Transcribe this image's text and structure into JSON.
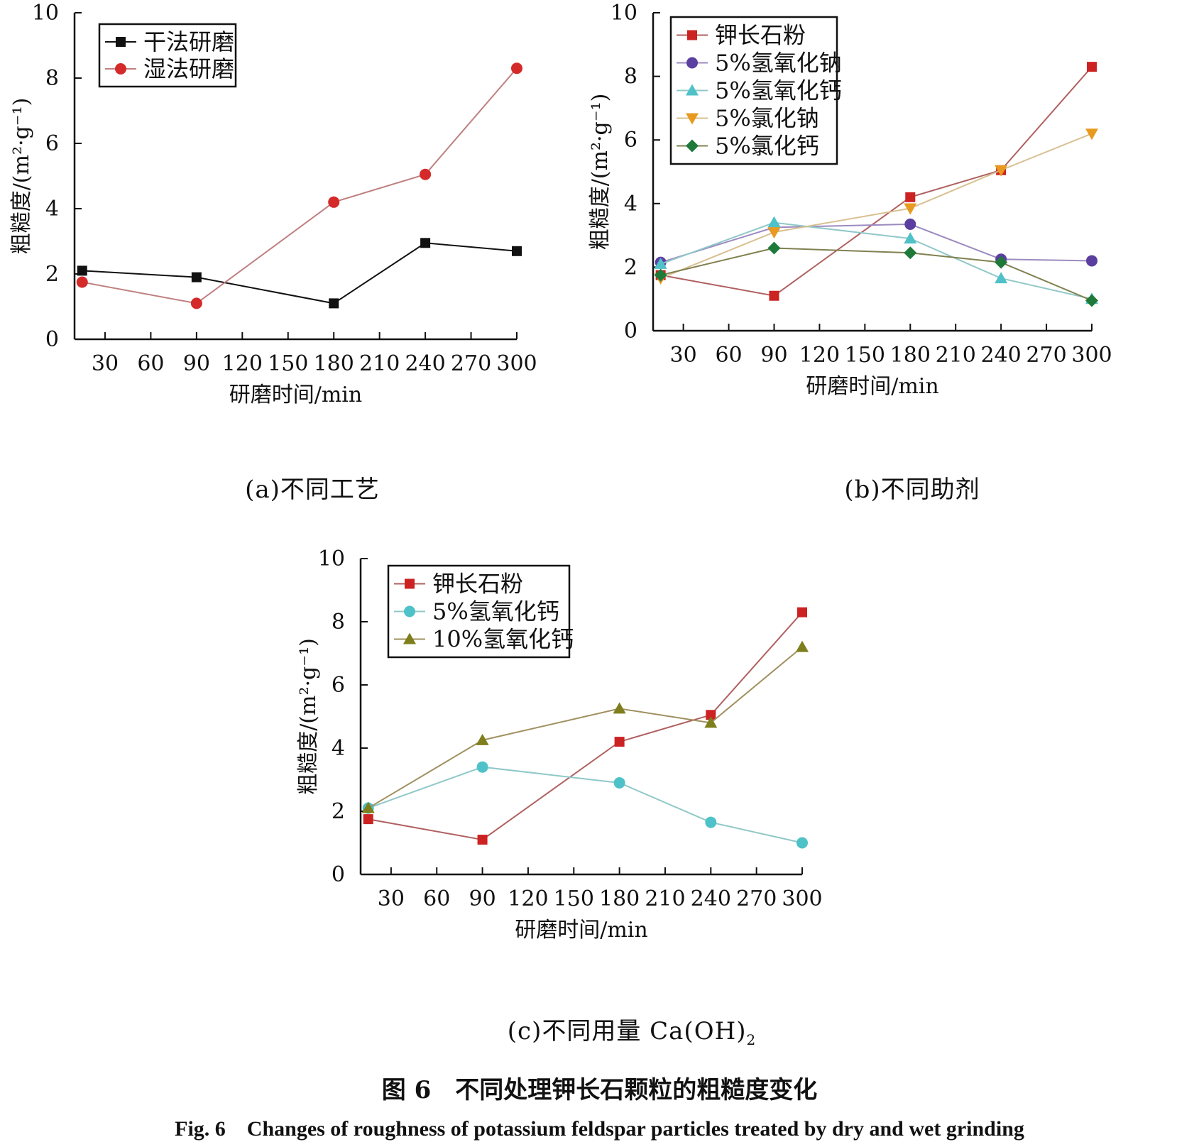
{
  "colors": {
    "dry": "#111111",
    "wet": "#d42a2a",
    "feldspar": "#cc2222",
    "naoh": "#5b3fa0",
    "caoh2": "#4fc1c8",
    "nacl": "#e89a20",
    "cacl2": "#1f7a3a",
    "caoh2_10": "#7e7e1c",
    "line_wet": "#c08080",
    "line_feldspar": "#b06060",
    "line_naoh": "#9c8ac0",
    "line_caoh2": "#90c8c8",
    "line_nacl": "#d8c090",
    "line_cacl2": "#808050",
    "line_caoh2_10": "#a09060"
  },
  "chart_data": [
    {
      "type": "line",
      "ylabel_cn": "粗糙度",
      "ylabel_unit": "/(m²·g⁻¹)",
      "xlabel": "研磨时间/min",
      "xlim": [
        10,
        300
      ],
      "ylim": [
        0,
        10
      ],
      "xticks": [
        30,
        60,
        90,
        120,
        150,
        180,
        210,
        240,
        270,
        300
      ],
      "yticks": [
        0,
        2,
        4,
        6,
        8,
        10
      ],
      "legend_position": "top-left",
      "caption": "(a)不同工艺",
      "series": [
        {
          "name": "干法研磨",
          "marker": "square",
          "color_key": "dry",
          "line_key": "dry",
          "x": [
            15,
            90,
            180,
            240,
            300
          ],
          "y": [
            2.1,
            1.9,
            1.1,
            2.95,
            2.7
          ]
        },
        {
          "name": "湿法研磨",
          "marker": "circle",
          "color_key": "wet",
          "line_key": "line_wet",
          "x": [
            15,
            90,
            180,
            240,
            300
          ],
          "y": [
            1.75,
            1.1,
            4.2,
            5.05,
            8.3
          ]
        }
      ]
    },
    {
      "type": "line",
      "ylabel_cn": "粗糙度",
      "ylabel_unit": "/(m²·g⁻¹)",
      "xlabel": "研磨时间/min",
      "xlim": [
        10,
        300
      ],
      "ylim": [
        0,
        10
      ],
      "xticks": [
        30,
        60,
        90,
        120,
        150,
        180,
        210,
        240,
        270,
        300
      ],
      "yticks": [
        0,
        2,
        4,
        6,
        8,
        10
      ],
      "legend_position": "top-left",
      "caption": "(b)不同助剂",
      "series": [
        {
          "name": "钾长石粉",
          "marker": "square",
          "color_key": "feldspar",
          "line_key": "line_feldspar",
          "x": [
            15,
            90,
            180,
            240,
            300
          ],
          "y": [
            1.75,
            1.1,
            4.2,
            5.05,
            8.3
          ]
        },
        {
          "name": "5%氢氧化钠",
          "marker": "circle",
          "color_key": "naoh",
          "line_key": "line_naoh",
          "x": [
            15,
            90,
            180,
            240,
            300
          ],
          "y": [
            2.15,
            3.25,
            3.35,
            2.25,
            2.2
          ]
        },
        {
          "name": "5%氢氧化钙",
          "marker": "triangle-up",
          "color_key": "caoh2",
          "line_key": "line_caoh2",
          "x": [
            15,
            90,
            180,
            240,
            300
          ],
          "y": [
            2.1,
            3.4,
            2.9,
            1.65,
            1.0
          ]
        },
        {
          "name": "5%氯化钠",
          "marker": "triangle-down",
          "color_key": "nacl",
          "line_key": "line_nacl",
          "x": [
            15,
            90,
            180,
            240,
            300
          ],
          "y": [
            1.65,
            3.1,
            3.85,
            5.05,
            6.2
          ]
        },
        {
          "name": "5%氯化钙",
          "marker": "diamond",
          "color_key": "cacl2",
          "line_key": "line_cacl2",
          "x": [
            15,
            90,
            180,
            240,
            300
          ],
          "y": [
            1.75,
            2.6,
            2.45,
            2.15,
            0.95
          ]
        }
      ]
    },
    {
      "type": "line",
      "ylabel_cn": "粗糙度",
      "ylabel_unit": "/(m²·g⁻¹)",
      "xlabel": "研磨时间/min",
      "xlim": [
        10,
        300
      ],
      "ylim": [
        0,
        10
      ],
      "xticks": [
        30,
        60,
        90,
        120,
        150,
        180,
        210,
        240,
        270,
        300
      ],
      "yticks": [
        0,
        2,
        4,
        6,
        8,
        10
      ],
      "legend_position": "top-left",
      "caption": "(c)不同用量 Ca(OH)",
      "caption_sub": "2",
      "series": [
        {
          "name": "钾长石粉",
          "marker": "square",
          "color_key": "feldspar",
          "line_key": "line_feldspar",
          "x": [
            15,
            90,
            180,
            240,
            300
          ],
          "y": [
            1.75,
            1.1,
            4.2,
            5.05,
            8.3
          ]
        },
        {
          "name": "5%氢氧化钙",
          "marker": "circle",
          "color_key": "caoh2",
          "line_key": "line_caoh2",
          "x": [
            15,
            90,
            180,
            240,
            300
          ],
          "y": [
            2.1,
            3.4,
            2.9,
            1.65,
            1.0
          ]
        },
        {
          "name": "10%氢氧化钙",
          "marker": "triangle-up",
          "color_key": "caoh2_10",
          "line_key": "line_caoh2_10",
          "x": [
            15,
            90,
            180,
            240,
            300
          ],
          "y": [
            2.1,
            4.25,
            5.25,
            4.8,
            7.2
          ]
        }
      ]
    }
  ],
  "figure": {
    "title_cn": "图 6　不同处理钾长石颗粒的粗糙度变化",
    "title_en": "Fig. 6　Changes of roughness of potassium feldspar particles treated by dry and wet grinding"
  }
}
